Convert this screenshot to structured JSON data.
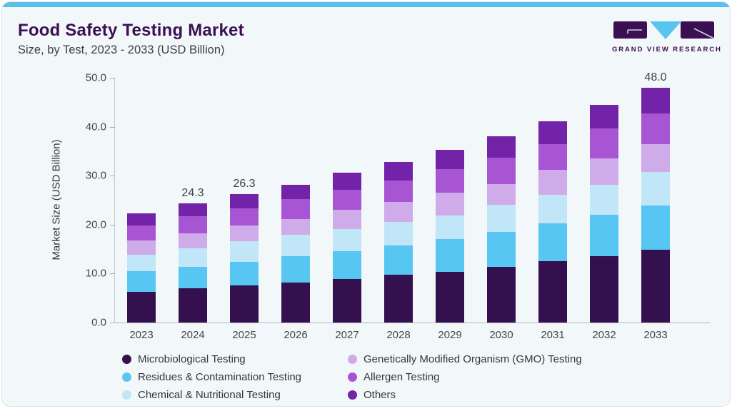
{
  "header": {
    "title": "Food Safety Testing Market",
    "subtitle": "Size, by Test, 2023 - 2033 (USD Billion)"
  },
  "logo": {
    "text": "GRAND VIEW RESEARCH",
    "brand_dark": "#3b1053",
    "brand_blue": "#5ac4f0"
  },
  "chart_data": {
    "type": "bar",
    "stacked": true,
    "title": "Food Safety Testing Market Size, by Test, 2023 - 2033 (USD Billion)",
    "xlabel": "",
    "ylabel": "Market Size (USD Billion)",
    "ylim": [
      0,
      50
    ],
    "yticks": [
      "0.0",
      "10.0",
      "20.0",
      "30.0",
      "40.0",
      "50.0"
    ],
    "grid": false,
    "legend_position": "bottom",
    "categories": [
      "2023",
      "2024",
      "2025",
      "2026",
      "2027",
      "2028",
      "2029",
      "2030",
      "2031",
      "2032",
      "2033"
    ],
    "series": [
      {
        "name": "Microbiological Testing",
        "color": "#34114e",
        "values": [
          6.2,
          7.0,
          7.6,
          8.1,
          8.9,
          9.8,
          10.4,
          11.4,
          12.5,
          13.6,
          14.8
        ]
      },
      {
        "name": "Residues & Contamination Testing",
        "color": "#58c6f2",
        "values": [
          4.3,
          4.4,
          4.8,
          5.5,
          5.7,
          6.0,
          6.6,
          7.1,
          7.8,
          8.4,
          9.1
        ]
      },
      {
        "name": "Chemical & Nutritional Testing",
        "color": "#c1e6f8",
        "values": [
          3.4,
          3.7,
          4.2,
          4.3,
          4.5,
          4.7,
          4.9,
          5.5,
          5.8,
          6.2,
          6.8
        ]
      },
      {
        "name": "Genetically Modified Organism (GMO) Testing",
        "color": "#d0abe9",
        "values": [
          2.9,
          3.1,
          3.2,
          3.2,
          3.9,
          4.2,
          4.6,
          4.3,
          5.1,
          5.3,
          5.8
        ]
      },
      {
        "name": "Allergen Testing",
        "color": "#a855d4",
        "values": [
          3.0,
          3.5,
          3.5,
          4.1,
          4.1,
          4.3,
          4.8,
          5.4,
          5.2,
          6.1,
          6.2
        ]
      },
      {
        "name": "Others",
        "color": "#7223a8",
        "values": [
          2.5,
          2.6,
          3.0,
          2.9,
          3.5,
          3.8,
          4.0,
          4.3,
          4.7,
          4.9,
          5.3
        ]
      }
    ],
    "totals": [
      22.3,
      24.3,
      26.3,
      28.1,
      30.6,
      32.8,
      35.3,
      38.0,
      41.1,
      44.5,
      48.0
    ],
    "bar_value_labels": [
      "",
      "24.3",
      "26.3",
      "",
      "",
      "",
      "",
      "",
      "",
      "",
      "48.0"
    ],
    "legend_columns": [
      [
        0,
        1,
        2
      ],
      [
        3,
        4,
        5
      ]
    ]
  }
}
